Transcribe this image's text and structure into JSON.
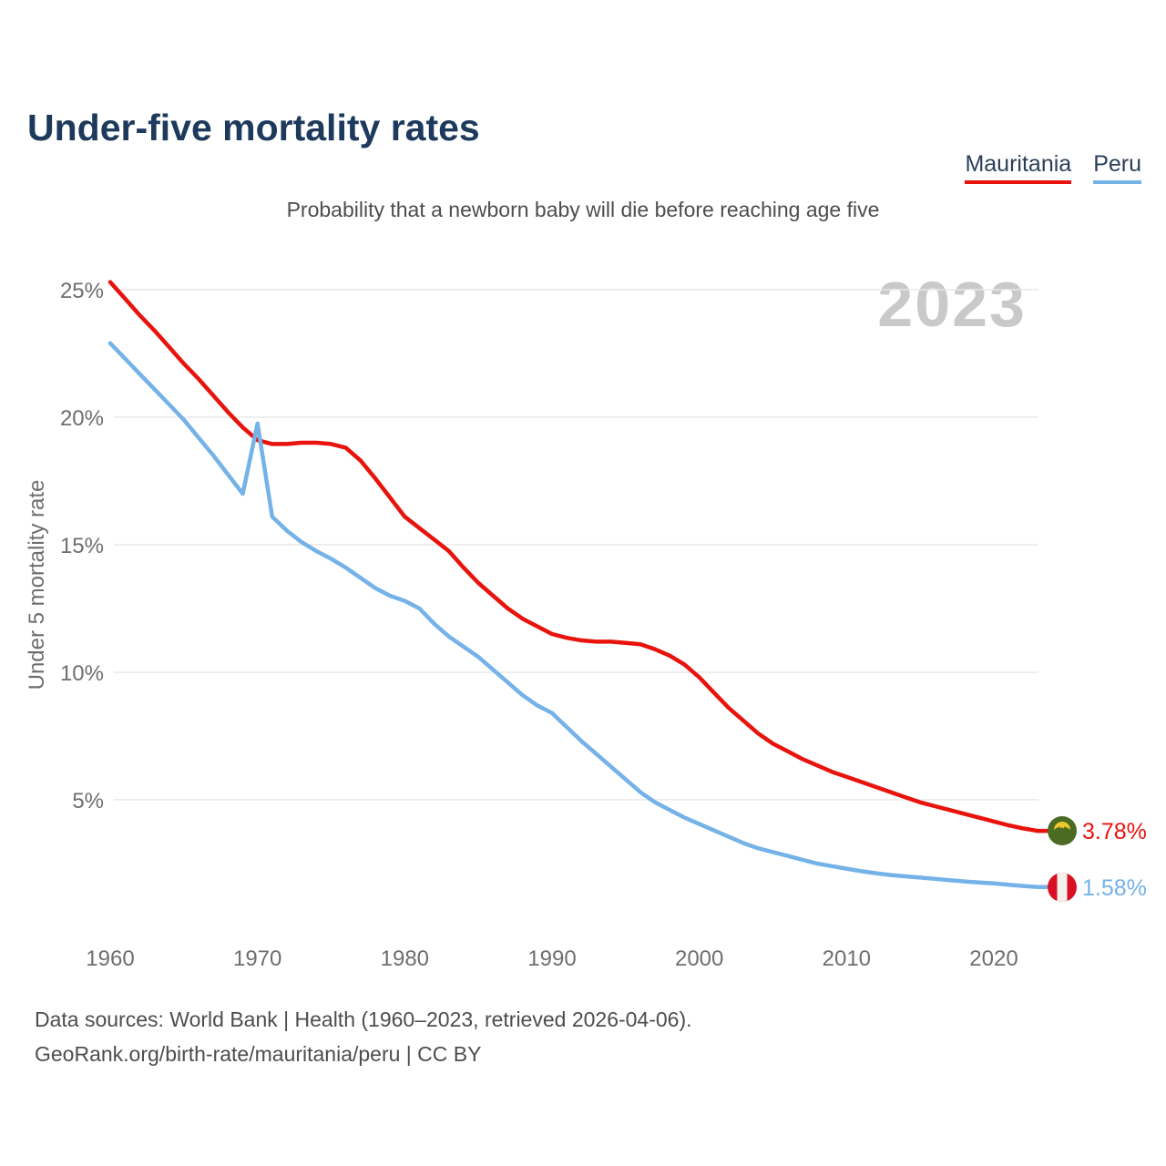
{
  "header": {
    "title": "Under-five mortality rates",
    "subtitle": "Probability that a newborn baby will die before reaching age five"
  },
  "legend": {
    "items": [
      {
        "label": "Mauritania",
        "color": "#e8130c"
      },
      {
        "label": "Peru",
        "color": "#74b2e8"
      }
    ]
  },
  "watermark": "2023",
  "axes": {
    "y_label": "Under 5 mortality rate"
  },
  "end_labels": [
    {
      "series": "Mauritania",
      "value_label": "3.78%",
      "flag": "mauritania-flag"
    },
    {
      "series": "Peru",
      "value_label": "1.58%",
      "flag": "peru-flag"
    }
  ],
  "footer": {
    "line1": "Data sources: World Bank | Health (1960–2023, retrieved 2026-04-06).",
    "line2": "GeoRank.org/birth-rate/mauritania/peru | CC BY"
  },
  "chart_data": {
    "type": "line",
    "title": "Under-five mortality rates",
    "subtitle": "Probability that a newborn baby will die before reaching age five",
    "ylabel": "Under 5 mortality rate",
    "xlabel": "",
    "grid": "horizontal",
    "legend_position": "top-right",
    "x_range": [
      1960,
      2023
    ],
    "ylim": [
      0,
      26
    ],
    "y_ticks": [
      {
        "v": 5,
        "label": "5%"
      },
      {
        "v": 10,
        "label": "10%"
      },
      {
        "v": 15,
        "label": "15%"
      },
      {
        "v": 20,
        "label": "20%"
      },
      {
        "v": 25,
        "label": "25%"
      }
    ],
    "x_ticks": [
      {
        "v": 1960,
        "label": "1960"
      },
      {
        "v": 1970,
        "label": "1970"
      },
      {
        "v": 1980,
        "label": "1980"
      },
      {
        "v": 1990,
        "label": "1990"
      },
      {
        "v": 2000,
        "label": "2000"
      },
      {
        "v": 2010,
        "label": "2010"
      },
      {
        "v": 2020,
        "label": "2020"
      }
    ],
    "x": [
      1960,
      1961,
      1962,
      1963,
      1964,
      1965,
      1966,
      1967,
      1968,
      1969,
      1970,
      1971,
      1972,
      1973,
      1974,
      1975,
      1976,
      1977,
      1978,
      1979,
      1980,
      1981,
      1982,
      1983,
      1984,
      1985,
      1986,
      1987,
      1988,
      1989,
      1990,
      1991,
      1992,
      1993,
      1994,
      1995,
      1996,
      1997,
      1998,
      1999,
      2000,
      2001,
      2002,
      2003,
      2004,
      2005,
      2006,
      2007,
      2008,
      2009,
      2010,
      2011,
      2012,
      2013,
      2014,
      2015,
      2016,
      2017,
      2018,
      2019,
      2020,
      2021,
      2022,
      2023
    ],
    "series": [
      {
        "name": "Mauritania",
        "color": "#e8130c",
        "end_label": "3.78%",
        "values": [
          25.3,
          24.65,
          24.0,
          23.4,
          22.75,
          22.1,
          21.5,
          20.85,
          20.2,
          19.6,
          19.1,
          18.95,
          18.95,
          19.0,
          19.0,
          18.95,
          18.8,
          18.3,
          17.6,
          16.85,
          16.1,
          15.65,
          15.2,
          14.75,
          14.1,
          13.5,
          13.0,
          12.5,
          12.1,
          11.8,
          11.5,
          11.35,
          11.25,
          11.2,
          11.2,
          11.15,
          11.1,
          10.9,
          10.65,
          10.3,
          9.8,
          9.2,
          8.6,
          8.1,
          7.6,
          7.2,
          6.9,
          6.6,
          6.35,
          6.1,
          5.9,
          5.7,
          5.5,
          5.3,
          5.1,
          4.9,
          4.75,
          4.6,
          4.45,
          4.3,
          4.15,
          4.0,
          3.88,
          3.78
        ]
      },
      {
        "name": "Peru",
        "color": "#74b2e8",
        "end_label": "1.58%",
        "values": [
          22.9,
          22.3,
          21.7,
          21.1,
          20.5,
          19.9,
          19.2,
          18.5,
          17.75,
          17.0,
          19.75,
          16.1,
          15.55,
          15.1,
          14.75,
          14.45,
          14.1,
          13.7,
          13.3,
          13.0,
          12.8,
          12.5,
          11.9,
          11.4,
          11.0,
          10.6,
          10.1,
          9.6,
          9.1,
          8.7,
          8.4,
          7.85,
          7.3,
          6.8,
          6.3,
          5.8,
          5.3,
          4.9,
          4.6,
          4.3,
          4.05,
          3.8,
          3.55,
          3.3,
          3.1,
          2.95,
          2.8,
          2.65,
          2.5,
          2.4,
          2.3,
          2.2,
          2.12,
          2.05,
          2.0,
          1.95,
          1.9,
          1.85,
          1.8,
          1.76,
          1.72,
          1.67,
          1.62,
          1.58
        ]
      }
    ]
  }
}
